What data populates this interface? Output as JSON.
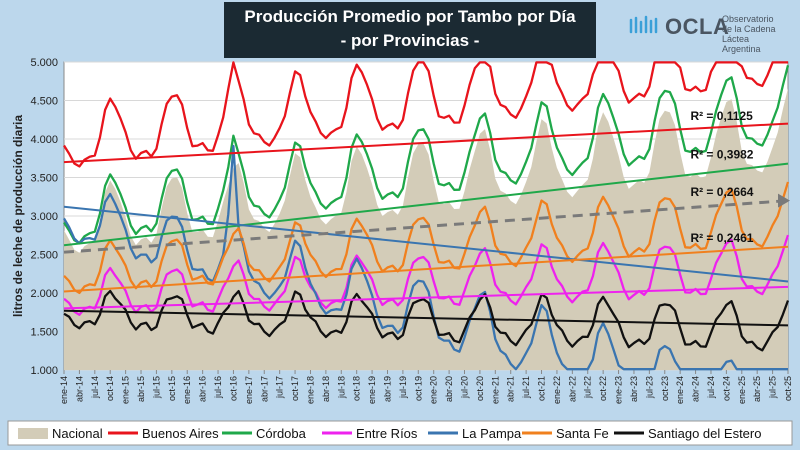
{
  "header": {
    "title_line1": "Producción Promedio por Tambo por Día",
    "title_line2": "- por Provincias -"
  },
  "logo": {
    "name": "OCLA",
    "sub1": "Observatorio",
    "sub2": "de la Cadena Láctea",
    "sub3": "Argentina",
    "icon": "ocla-waves-icon"
  },
  "chart_data": {
    "type": "line",
    "title": "Producción Promedio por Tambo por Día - por Provincias -",
    "ylabel": "litros de leche de producción diaria",
    "ylim": [
      1000,
      5000
    ],
    "yticks": [
      1000,
      1500,
      2000,
      2500,
      3000,
      3500,
      4000,
      4500,
      5000
    ],
    "ytick_labels": [
      "1.000",
      "1.500",
      "2.000",
      "2.500",
      "3.000",
      "3.500",
      "4.000",
      "4.500",
      "5.000"
    ],
    "x_start": "ene-14",
    "x_end": "oct-25",
    "x_ticks": [
      "ene-14",
      "abr-14",
      "jul-14",
      "oct-14",
      "ene-15",
      "abr-15",
      "jul-15",
      "oct-15",
      "ene-16",
      "abr-16",
      "jul-16",
      "oct-16",
      "ene-17",
      "abr-17",
      "jul-17",
      "oct-17",
      "ene-18",
      "abr-18",
      "jul-18",
      "oct-18",
      "ene-19",
      "abr-19",
      "jul-19",
      "oct-19",
      "ene-20",
      "abr-20",
      "jul-20",
      "oct-20",
      "ene-21",
      "abr-21",
      "jul-21",
      "oct-21",
      "ene-22",
      "abr-22",
      "jul-22",
      "oct-22",
      "ene-23",
      "abr-23",
      "jul-23",
      "oct-23",
      "ene-24",
      "abr-24",
      "jul-24",
      "oct-24",
      "ene-25",
      "abr-25",
      "jul-25",
      "oct-25"
    ],
    "grid": true,
    "legend_position": "bottom",
    "series": [
      {
        "name": "Nacional",
        "style": "area",
        "color": "#d3ccb8",
        "base": 2850,
        "amp": 450,
        "trend": 10,
        "spike": 0
      },
      {
        "name": "Buenos Aires",
        "style": "line",
        "color": "#e8141c",
        "base": 3950,
        "amp": 420,
        "trend": 10,
        "spike": 500
      },
      {
        "name": "Córdoba",
        "style": "line",
        "color": "#1fa84a",
        "base": 2950,
        "amp": 420,
        "trend": 12,
        "spike": 300
      },
      {
        "name": "Entre Ríos",
        "style": "line",
        "color": "#ee22ee",
        "base": 1950,
        "amp": 300,
        "trend": 3,
        "spike": 0
      },
      {
        "name": "La Pampa",
        "style": "line",
        "color": "#3a75b0",
        "base": 3000,
        "amp": 380,
        "trend": -22,
        "spike": 1100
      },
      {
        "name": "Santa Fe",
        "style": "line",
        "color": "#f0801e",
        "base": 2250,
        "amp": 330,
        "trend": 6,
        "spike": 0
      },
      {
        "name": "Santiago del Estero",
        "style": "line",
        "color": "#111111",
        "base": 1750,
        "amp": 250,
        "trend": -2,
        "spike": 0
      }
    ],
    "trendlines": [
      {
        "series": "Buenos Aires",
        "color": "#e8141c",
        "start": 3700,
        "end": 4200,
        "style": "solid"
      },
      {
        "series": "Córdoba",
        "color": "#1fa84a",
        "start": 2620,
        "end": 3680,
        "style": "solid"
      },
      {
        "series": "La Pampa",
        "color": "#3a75b0",
        "start": 3120,
        "end": 2150,
        "style": "solid"
      },
      {
        "series": "Entre Ríos",
        "color": "#ee22ee",
        "start": 1800,
        "end": 2080,
        "style": "solid"
      },
      {
        "series": "Santa Fe",
        "color": "#f0801e",
        "start": 2020,
        "end": 2600,
        "style": "solid"
      },
      {
        "series": "Santiago del Estero",
        "color": "#111111",
        "start": 1770,
        "end": 1580,
        "style": "solid"
      },
      {
        "series": "Nacional",
        "color": "#7a7a7a",
        "start": 2530,
        "end": 3200,
        "style": "dashed"
      }
    ],
    "annotations": [
      {
        "text": "R² = 0,1125",
        "at_index": 122,
        "y": 4250
      },
      {
        "text": "R² = 0,3982",
        "at_index": 122,
        "y": 3750
      },
      {
        "text": "R² = 0,2664",
        "at_index": 122,
        "y": 3260
      },
      {
        "text": "R² = 0,2461",
        "at_index": 122,
        "y": 2660
      }
    ]
  }
}
